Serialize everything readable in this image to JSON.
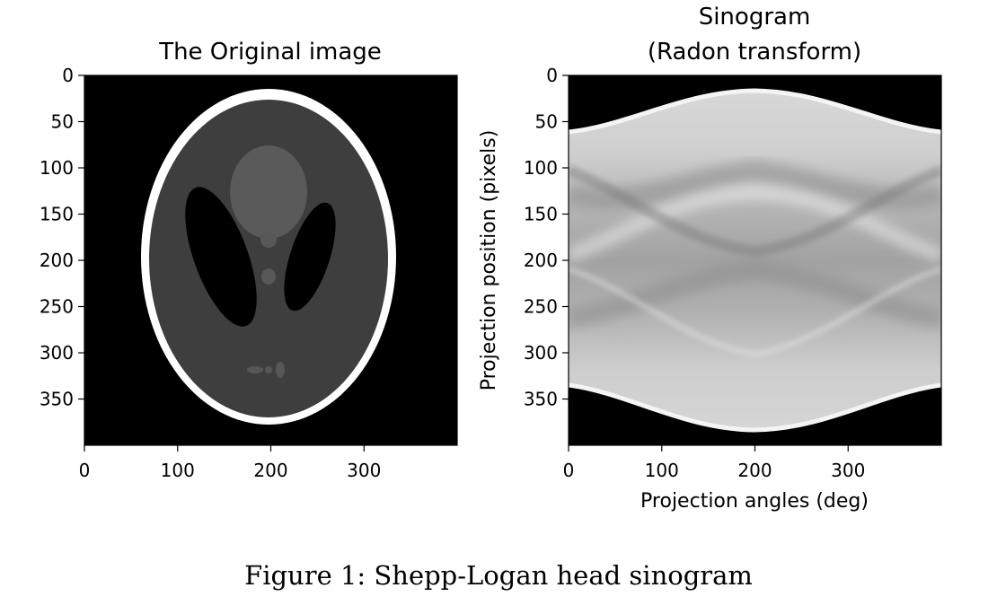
{
  "figure": {
    "caption": "Figure 1: Shepp-Logan head sinogram"
  },
  "chart_data": [
    {
      "type": "image",
      "title": "The Original image",
      "xlabel": "",
      "ylabel": "",
      "x_ticks": [
        0,
        100,
        200,
        300
      ],
      "y_ticks": [
        0,
        50,
        100,
        150,
        200,
        250,
        300,
        350
      ],
      "xlim": [
        0,
        400
      ],
      "ylim": [
        400,
        0
      ],
      "colormap": "gray",
      "content": "Shepp-Logan phantom"
    },
    {
      "type": "image",
      "title_lines": [
        "Sinogram",
        "(Radon transform)"
      ],
      "xlabel": "Projection angles (deg)",
      "ylabel": "Projection position (pixels)",
      "x_ticks": [
        0,
        100,
        200,
        300
      ],
      "y_ticks": [
        0,
        50,
        100,
        150,
        200,
        250,
        300,
        350
      ],
      "xlim": [
        0,
        400
      ],
      "ylim": [
        400,
        0
      ],
      "colormap": "gray",
      "content": "Radon transform sinogram"
    }
  ]
}
